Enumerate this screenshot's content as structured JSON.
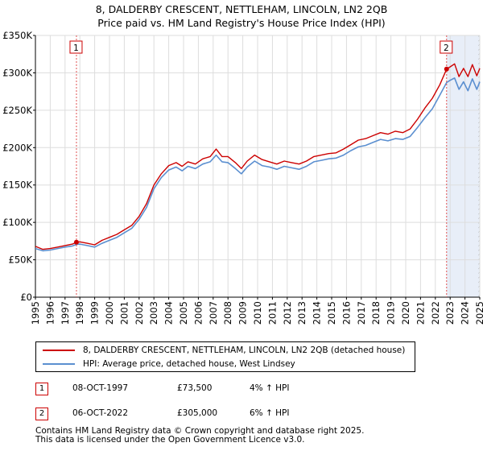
{
  "title_line1": "8, DALDERBY CRESCENT, NETTLEHAM, LINCOLN, LN2 2QB",
  "title_line2": "Price paid vs. HM Land Registry's House Price Index (HPI)",
  "chart_data": {
    "type": "line",
    "x_range": [
      1995,
      2025
    ],
    "ylim": [
      0,
      350000
    ],
    "y_ticks": [
      0,
      50000,
      100000,
      150000,
      200000,
      250000,
      300000,
      350000
    ],
    "y_tick_labels": [
      "£0",
      "£50K",
      "£100K",
      "£150K",
      "£200K",
      "£250K",
      "£300K",
      "£350K"
    ],
    "x_ticks": [
      1995,
      1996,
      1997,
      1998,
      1999,
      2000,
      2001,
      2002,
      2003,
      2004,
      2005,
      2006,
      2007,
      2008,
      2009,
      2010,
      2011,
      2012,
      2013,
      2014,
      2015,
      2016,
      2017,
      2018,
      2019,
      2020,
      2021,
      2022,
      2023,
      2024,
      2025
    ],
    "x_tick_labels": [
      "1995",
      "1996",
      "1997",
      "1998",
      "1999",
      "2000",
      "2001",
      "2002",
      "2003",
      "2004",
      "2005",
      "2006",
      "2007",
      "2008",
      "2009",
      "2010",
      "2011",
      "2012",
      "2013",
      "2014",
      "2015",
      "2016",
      "2017",
      "2018",
      "2019",
      "2020",
      "2021",
      "2022",
      "2023",
      "2024",
      "2025"
    ],
    "grid": true,
    "series": [
      {
        "name": "8, DALDERBY CRESCENT, NETTLEHAM, LINCOLN, LN2 2QB (detached house)",
        "color": "#cc0000",
        "x": [
          1995.0,
          1995.5,
          1996.0,
          1996.5,
          1997.0,
          1997.5,
          1997.77,
          1998.0,
          1998.5,
          1999.0,
          1999.5,
          2000.0,
          2000.5,
          2001.0,
          2001.5,
          2002.0,
          2002.5,
          2003.0,
          2003.5,
          2004.0,
          2004.5,
          2004.9,
          2005.3,
          2005.8,
          2006.3,
          2006.8,
          2007.2,
          2007.6,
          2008.0,
          2008.5,
          2008.9,
          2009.3,
          2009.8,
          2010.3,
          2010.8,
          2011.3,
          2011.8,
          2012.3,
          2012.8,
          2013.3,
          2013.8,
          2014.3,
          2014.8,
          2015.3,
          2015.8,
          2016.3,
          2016.8,
          2017.3,
          2017.8,
          2018.3,
          2018.8,
          2019.3,
          2019.8,
          2020.3,
          2020.8,
          2021.3,
          2021.8,
          2022.3,
          2022.76,
          2023.0,
          2023.3,
          2023.6,
          2023.9,
          2024.2,
          2024.5,
          2024.8,
          2025.0
        ],
        "values": [
          68000,
          64000,
          65000,
          67000,
          69000,
          71000,
          73500,
          74000,
          72000,
          70000,
          76000,
          80000,
          84000,
          90000,
          96000,
          108000,
          125000,
          150000,
          165000,
          176000,
          180000,
          175000,
          181000,
          178000,
          185000,
          188000,
          198000,
          188000,
          188000,
          180000,
          172000,
          182000,
          190000,
          184000,
          181000,
          178000,
          182000,
          180000,
          178000,
          182000,
          188000,
          190000,
          192000,
          193000,
          198000,
          204000,
          210000,
          212000,
          216000,
          220000,
          218000,
          222000,
          220000,
          225000,
          238000,
          253000,
          266000,
          284000,
          305000,
          308000,
          312000,
          295000,
          306000,
          295000,
          311000,
          296000,
          306000
        ]
      },
      {
        "name": "HPI: Average price, detached house, West Lindsey",
        "color": "#5b8fd0",
        "x": [
          1995.0,
          1995.5,
          1996.0,
          1996.5,
          1997.0,
          1997.5,
          1997.77,
          1998.0,
          1998.5,
          1999.0,
          1999.5,
          2000.0,
          2000.5,
          2001.0,
          2001.5,
          2002.0,
          2002.5,
          2003.0,
          2003.5,
          2004.0,
          2004.5,
          2004.9,
          2005.3,
          2005.8,
          2006.3,
          2006.8,
          2007.2,
          2007.6,
          2008.0,
          2008.5,
          2008.9,
          2009.3,
          2009.8,
          2010.3,
          2010.8,
          2011.3,
          2011.8,
          2012.3,
          2012.8,
          2013.3,
          2013.8,
          2014.3,
          2014.8,
          2015.3,
          2015.8,
          2016.3,
          2016.8,
          2017.3,
          2017.8,
          2018.3,
          2018.8,
          2019.3,
          2019.8,
          2020.3,
          2020.8,
          2021.3,
          2021.8,
          2022.3,
          2022.76,
          2023.0,
          2023.3,
          2023.6,
          2023.9,
          2024.2,
          2024.5,
          2024.8,
          2025.0
        ],
        "values": [
          65000,
          62000,
          63000,
          65000,
          67000,
          68500,
          70500,
          71000,
          69000,
          67000,
          72000,
          76000,
          80000,
          86000,
          92000,
          104000,
          120000,
          145000,
          160000,
          170000,
          174000,
          169000,
          175000,
          172000,
          178000,
          181000,
          190000,
          181000,
          180000,
          172000,
          165000,
          174000,
          182000,
          176000,
          174000,
          171000,
          175000,
          173000,
          171000,
          175000,
          181000,
          183000,
          185000,
          186000,
          190000,
          196000,
          201000,
          203000,
          207000,
          211000,
          209000,
          212000,
          211000,
          215000,
          227000,
          240000,
          252000,
          270000,
          287000,
          290000,
          293000,
          278000,
          288000,
          276000,
          292000,
          278000,
          288000
        ]
      }
    ],
    "annotations": [
      {
        "label": "1",
        "x": 1997.77,
        "value": 73500
      },
      {
        "label": "2",
        "x": 2022.76,
        "value": 305000
      }
    ]
  },
  "legend": {
    "red_label": "8, DALDERBY CRESCENT, NETTLEHAM, LINCOLN, LN2 2QB (detached house)",
    "blue_label": "HPI: Average price, detached house, West Lindsey"
  },
  "transactions": [
    {
      "num": "1",
      "date": "08-OCT-1997",
      "price": "£73,500",
      "hpi": "4% ↑ HPI"
    },
    {
      "num": "2",
      "date": "06-OCT-2022",
      "price": "£305,000",
      "hpi": "6% ↑ HPI"
    }
  ],
  "footer_line1": "Contains HM Land Registry data © Crown copyright and database right 2025.",
  "footer_line2": "This data is licensed under the Open Government Licence v3.0."
}
